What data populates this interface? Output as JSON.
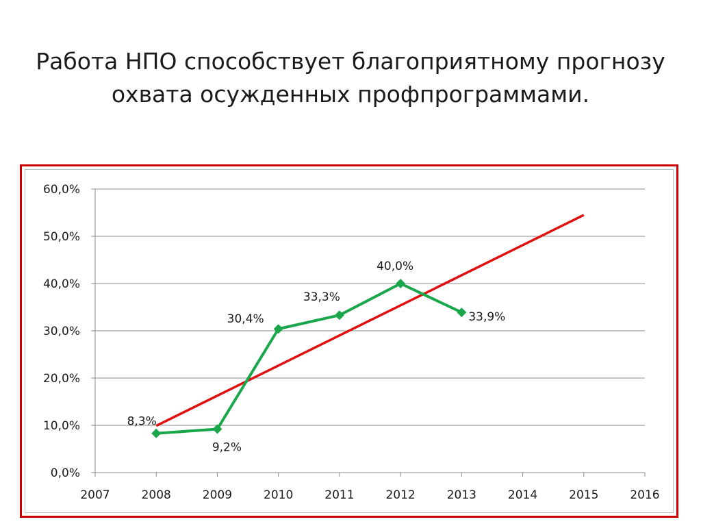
{
  "slide": {
    "title_lines": [
      "Работа НПО способствует благоприятному прогнозу",
      "охвата осужденных профпрограммами."
    ]
  },
  "chart_data": {
    "type": "line",
    "title": "",
    "xlabel": "",
    "ylabel": "",
    "xlim": [
      2007,
      2016
    ],
    "ylim": [
      0,
      60
    ],
    "x_ticks": [
      "2007",
      "2008",
      "2009",
      "2010",
      "2011",
      "2012",
      "2013",
      "2014",
      "2015",
      "2016"
    ],
    "y_ticks": [
      "0,0%",
      "10,0%",
      "20,0%",
      "30,0%",
      "40,0%",
      "50,0%",
      "60,0%"
    ],
    "grid": true,
    "legend": "none",
    "series": [
      {
        "color": "#1aa64a",
        "marker": "diamond",
        "x": [
          2008,
          2009,
          2010,
          2011,
          2012,
          2013
        ],
        "values": [
          8.3,
          9.2,
          30.4,
          33.3,
          40.0,
          33.9
        ],
        "labels": [
          "8,3%",
          "9,2%",
          "30,4%",
          "33,3%",
          "40,0%",
          "33,9%"
        ]
      },
      {
        "type": "trendline",
        "color": "#e01010",
        "x": [
          2008,
          2015
        ],
        "values": [
          9.9,
          54.5
        ]
      }
    ]
  }
}
